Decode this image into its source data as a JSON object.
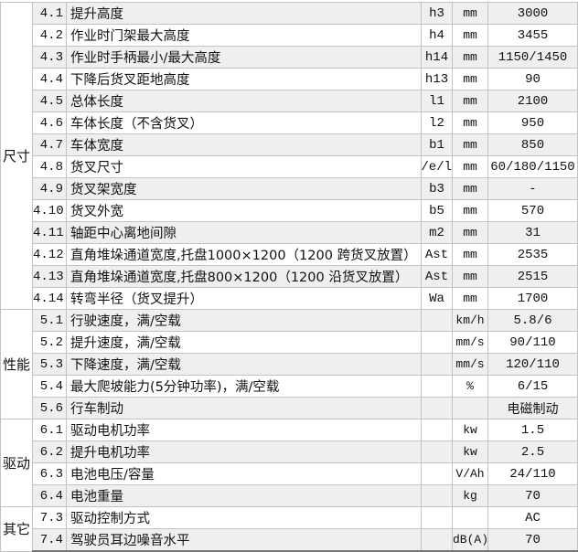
{
  "colors": {
    "row_shade": "#efefef",
    "grid": "#c3c3c3"
  },
  "groups": [
    {
      "label": "尺寸",
      "rows": [
        {
          "no": "4.1",
          "desc": "提升高度",
          "sym": "h3",
          "unit": "mm",
          "val": "3000"
        },
        {
          "no": "4.2",
          "desc": "作业时门架最大高度",
          "sym": "h4",
          "unit": "mm",
          "val": "3455"
        },
        {
          "no": "4.3",
          "desc": "作业时手柄最小/最大高度",
          "sym": "h14",
          "unit": "mm",
          "val": "1150/1450"
        },
        {
          "no": "4.4",
          "desc": "下降后货叉距地高度",
          "sym": "h13",
          "unit": "mm",
          "val": "90"
        },
        {
          "no": "4.5",
          "desc": "总体长度",
          "sym": "l1",
          "unit": "mm",
          "val": "2100"
        },
        {
          "no": "4.6",
          "desc": "车体长度（不含货叉）",
          "sym": "l2",
          "unit": "mm",
          "val": "950"
        },
        {
          "no": "4.7",
          "desc": "车体宽度",
          "sym": "b1",
          "unit": "mm",
          "val": "850"
        },
        {
          "no": "4.8",
          "desc": "货叉尺寸",
          "sym": "s/e/l",
          "unit": "mm",
          "val": "60/180/1150"
        },
        {
          "no": "4.9",
          "desc": "货叉架宽度",
          "sym": "b3",
          "unit": "mm",
          "val": "-"
        },
        {
          "no": "4.10",
          "desc": "货叉外宽",
          "sym": "b5",
          "unit": "mm",
          "val": "570"
        },
        {
          "no": "4.11",
          "desc": "轴距中心离地间隙",
          "sym": "m2",
          "unit": "mm",
          "val": "31"
        },
        {
          "no": "4.12",
          "desc": "直角堆垛通道宽度,托盘1000×1200（1200 跨货叉放置）",
          "sym": "Ast",
          "unit": "mm",
          "val": "2535"
        },
        {
          "no": "4.13",
          "desc": "直角堆垛通道宽度,托盘800×1200（1200 沿货叉放置）",
          "sym": "Ast",
          "unit": "mm",
          "val": "2515"
        },
        {
          "no": "4.14",
          "desc": "转弯半径（货叉提升）",
          "sym": "Wa",
          "unit": "mm",
          "val": "1700"
        }
      ]
    },
    {
      "label": "性能",
      "rows": [
        {
          "no": "5.1",
          "desc": "行驶速度，满/空载",
          "sym": "",
          "unit": "km/h",
          "val": "5.8/6"
        },
        {
          "no": "5.2",
          "desc": "提升速度，满/空载",
          "sym": "",
          "unit": "mm/s",
          "val": "90/110"
        },
        {
          "no": "5.3",
          "desc": "下降速度，满/空载",
          "sym": "",
          "unit": "mm/s",
          "val": "120/110"
        },
        {
          "no": "5.4",
          "desc": "最大爬坡能力(5分钟功率)，满/空载",
          "sym": "",
          "unit": "%",
          "val": "6/15"
        },
        {
          "no": "5.6",
          "desc": "行车制动",
          "sym": "",
          "unit": "",
          "val": "电磁制动"
        }
      ]
    },
    {
      "label": "驱动",
      "rows": [
        {
          "no": "6.1",
          "desc": "驱动电机功率",
          "sym": "",
          "unit": "kw",
          "val": "1.5"
        },
        {
          "no": "6.2",
          "desc": "提升电机功率",
          "sym": "",
          "unit": "kw",
          "val": "2.5"
        },
        {
          "no": "6.3",
          "desc": "电池电压/容量",
          "sym": "",
          "unit": "V/Ah",
          "val": "24/110"
        },
        {
          "no": "6.4",
          "desc": "电池重量",
          "sym": "",
          "unit": "kg",
          "val": "70"
        }
      ]
    },
    {
      "label": "其它",
      "rows": [
        {
          "no": "7.3",
          "desc": "驱动控制方式",
          "sym": "",
          "unit": "",
          "val": "AC"
        },
        {
          "no": "7.4",
          "desc": "驾驶员耳边噪音水平",
          "sym": "",
          "unit": "dB(A)",
          "val": "70"
        }
      ]
    }
  ]
}
